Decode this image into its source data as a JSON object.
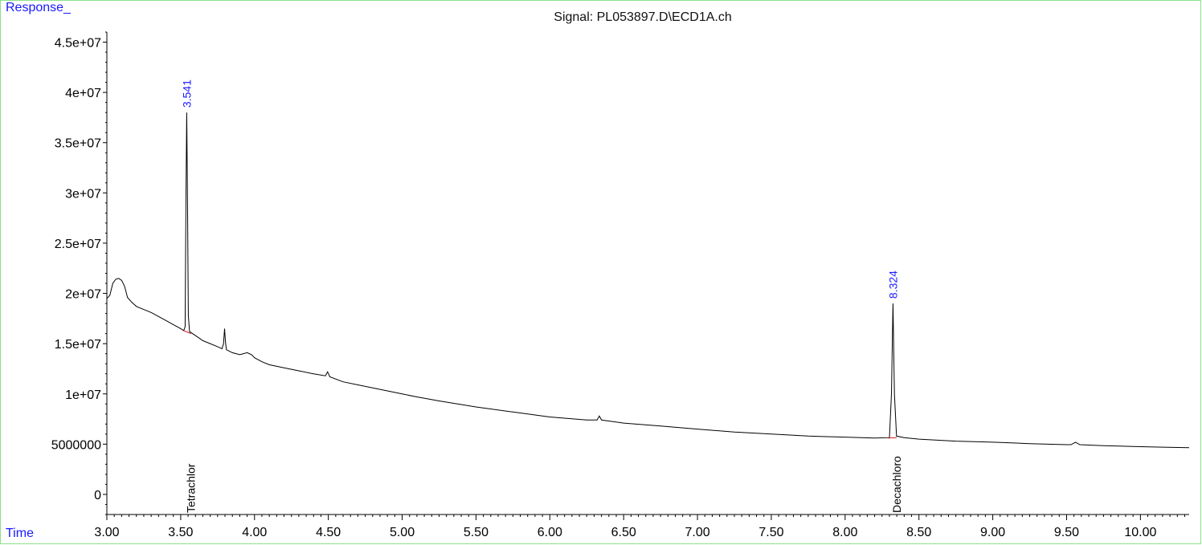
{
  "chart_data": {
    "type": "line",
    "title": "Signal: PL053897.D\\ECD1A.ch",
    "ylabel": "Response_",
    "xlabel": "Time",
    "xlim": [
      3.0,
      10.33
    ],
    "ylim": [
      -2000000,
      46000000
    ],
    "x_ticks": [
      "3.00",
      "3.50",
      "4.00",
      "4.50",
      "5.00",
      "5.50",
      "6.00",
      "6.50",
      "7.00",
      "7.50",
      "8.00",
      "8.50",
      "9.00",
      "9.50",
      "10.00"
    ],
    "y_ticks": [
      {
        "value": 45000000,
        "label": "4.5e+07"
      },
      {
        "value": 40000000,
        "label": "4e+07"
      },
      {
        "value": 35000000,
        "label": "3.5e+07"
      },
      {
        "value": 30000000,
        "label": "3e+07"
      },
      {
        "value": 25000000,
        "label": "2.5e+07"
      },
      {
        "value": 20000000,
        "label": "2e+07"
      },
      {
        "value": 15000000,
        "label": "1.5e+07"
      },
      {
        "value": 10000000,
        "label": "1e+07"
      },
      {
        "value": 5000000,
        "label": "5000000"
      },
      {
        "value": 0,
        "label": "0"
      }
    ],
    "series": [
      {
        "color": "#000000",
        "points": [
          [
            3.0,
            19500000
          ],
          [
            3.02,
            19800000
          ],
          [
            3.04,
            21000000
          ],
          [
            3.06,
            21400000
          ],
          [
            3.08,
            21500000
          ],
          [
            3.1,
            21300000
          ],
          [
            3.12,
            20700000
          ],
          [
            3.14,
            19600000
          ],
          [
            3.17,
            19100000
          ],
          [
            3.2,
            18700000
          ],
          [
            3.25,
            18400000
          ],
          [
            3.3,
            18100000
          ],
          [
            3.35,
            17700000
          ],
          [
            3.4,
            17300000
          ],
          [
            3.45,
            16900000
          ],
          [
            3.5,
            16500000
          ],
          [
            3.52,
            16300000
          ],
          [
            3.53,
            16700000
          ],
          [
            3.536,
            30000000
          ],
          [
            3.541,
            38000000
          ],
          [
            3.546,
            30000000
          ],
          [
            3.552,
            17800000
          ],
          [
            3.56,
            16200000
          ],
          [
            3.6,
            15800000
          ],
          [
            3.65,
            15300000
          ],
          [
            3.7,
            15000000
          ],
          [
            3.75,
            14700000
          ],
          [
            3.78,
            14500000
          ],
          [
            3.79,
            15000000
          ],
          [
            3.797,
            16500000
          ],
          [
            3.803,
            15200000
          ],
          [
            3.81,
            14400000
          ],
          [
            3.85,
            14100000
          ],
          [
            3.9,
            13900000
          ],
          [
            3.95,
            14100000
          ],
          [
            3.98,
            13900000
          ],
          [
            4.0,
            13600000
          ],
          [
            4.05,
            13200000
          ],
          [
            4.1,
            12900000
          ],
          [
            4.2,
            12600000
          ],
          [
            4.3,
            12300000
          ],
          [
            4.4,
            12000000
          ],
          [
            4.48,
            11800000
          ],
          [
            4.495,
            12200000
          ],
          [
            4.51,
            11700000
          ],
          [
            4.6,
            11200000
          ],
          [
            4.7,
            10900000
          ],
          [
            4.8,
            10600000
          ],
          [
            4.9,
            10300000
          ],
          [
            5.0,
            10000000
          ],
          [
            5.1,
            9700000
          ],
          [
            5.25,
            9300000
          ],
          [
            5.5,
            8700000
          ],
          [
            5.75,
            8200000
          ],
          [
            6.0,
            7700000
          ],
          [
            6.25,
            7400000
          ],
          [
            6.32,
            7400000
          ],
          [
            6.335,
            7800000
          ],
          [
            6.35,
            7400000
          ],
          [
            6.5,
            7100000
          ],
          [
            6.75,
            6800000
          ],
          [
            7.0,
            6500000
          ],
          [
            7.25,
            6200000
          ],
          [
            7.5,
            6000000
          ],
          [
            7.75,
            5800000
          ],
          [
            8.0,
            5700000
          ],
          [
            8.2,
            5600000
          ],
          [
            8.3,
            5650000
          ],
          [
            8.314,
            10000000
          ],
          [
            8.324,
            19000000
          ],
          [
            8.334,
            10000000
          ],
          [
            8.348,
            5800000
          ],
          [
            8.4,
            5650000
          ],
          [
            8.5,
            5500000
          ],
          [
            8.75,
            5300000
          ],
          [
            9.0,
            5200000
          ],
          [
            9.25,
            5050000
          ],
          [
            9.5,
            4950000
          ],
          [
            9.53,
            4950000
          ],
          [
            9.56,
            5200000
          ],
          [
            9.59,
            4950000
          ],
          [
            9.75,
            4850000
          ],
          [
            10.0,
            4750000
          ],
          [
            10.15,
            4700000
          ],
          [
            10.33,
            4650000
          ]
        ]
      }
    ],
    "baselines": [
      {
        "color": "#d62020",
        "points": [
          [
            3.52,
            16300000
          ],
          [
            3.57,
            16000000
          ]
        ]
      },
      {
        "color": "#d62020",
        "points": [
          [
            8.29,
            5600000
          ],
          [
            8.35,
            5650000
          ]
        ]
      }
    ],
    "peak_labels": [
      {
        "x": 3.541,
        "y": 38000000,
        "text": "3.541",
        "color": "#1a1aff"
      },
      {
        "x": 8.324,
        "y": 19000000,
        "text": "8.324",
        "color": "#1a1aff"
      }
    ],
    "compound_labels": [
      {
        "x": 3.52,
        "text": "Tetrachlor"
      },
      {
        "x": 8.3,
        "text": "Decachloro"
      }
    ]
  }
}
